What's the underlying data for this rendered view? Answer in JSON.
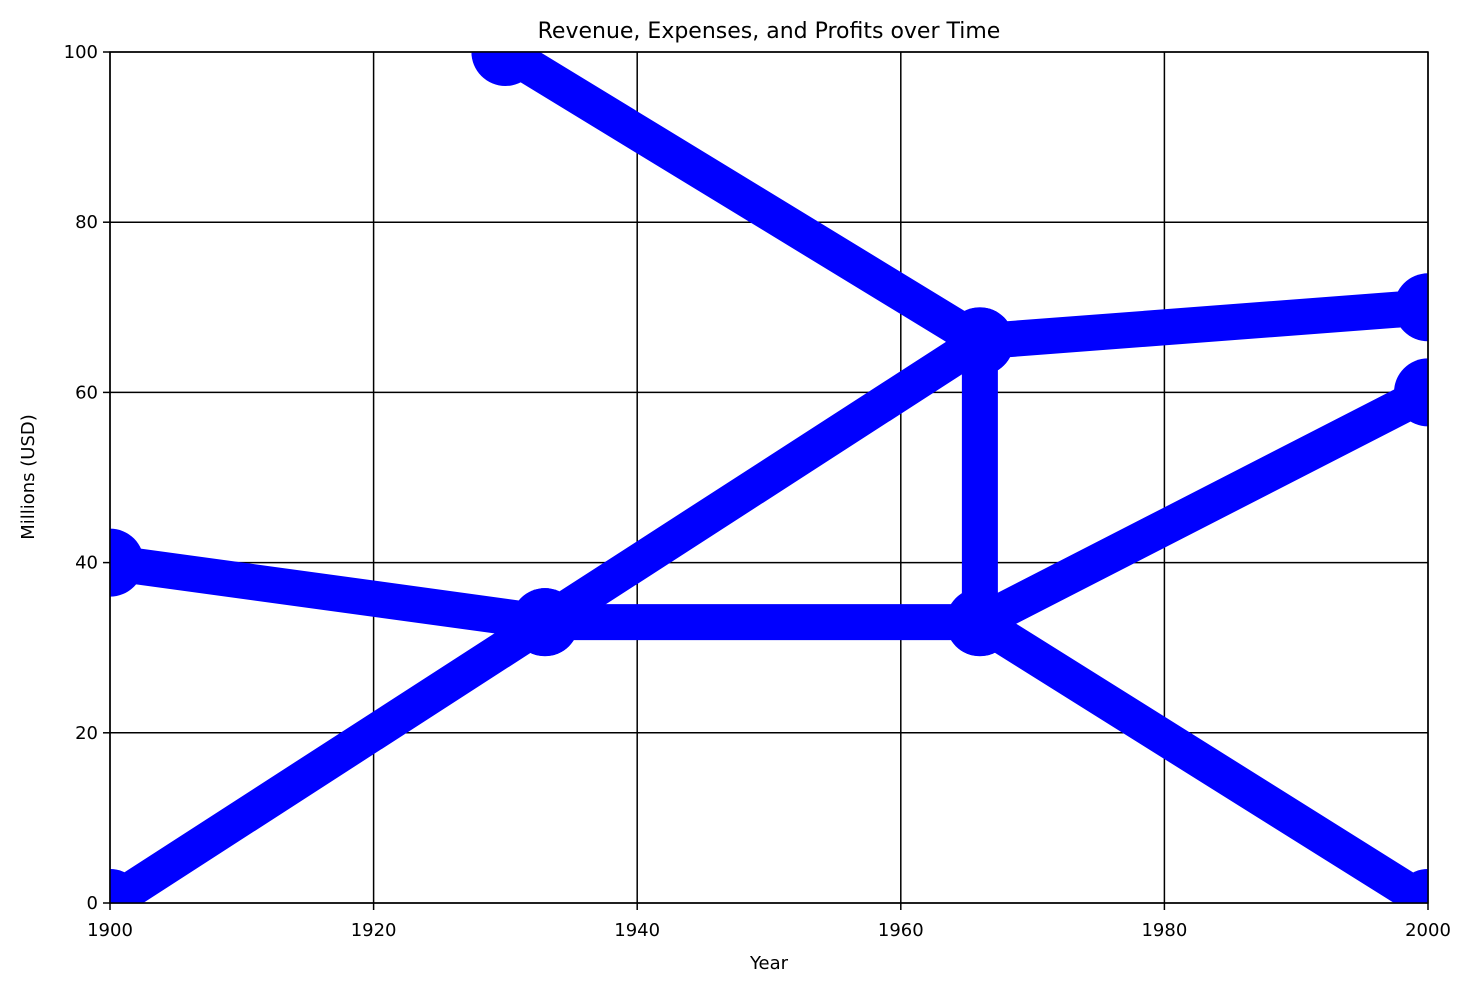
{
  "chart_data": {
    "type": "line",
    "title": "Revenue, Expenses, and Profits over Time",
    "xlabel": "Year",
    "ylabel": "Millions (USD)",
    "xlim": [
      1900,
      2000
    ],
    "ylim": [
      0,
      100
    ],
    "xticks": [
      1900,
      1920,
      1940,
      1960,
      1980,
      2000
    ],
    "yticks": [
      0,
      20,
      40,
      60,
      80,
      100
    ],
    "grid": true,
    "series_color": "#0000ff",
    "series": [
      {
        "x": [
          1900,
          1933,
          1966,
          2000
        ],
        "y": [
          0,
          33,
          66,
          70
        ]
      },
      {
        "x": [
          1900,
          1933,
          1966,
          2000
        ],
        "y": [
          40,
          33,
          33,
          0
        ]
      },
      {
        "x": [
          1930,
          1966,
          1966,
          2000
        ],
        "y": [
          100,
          66,
          33,
          60
        ]
      }
    ]
  }
}
